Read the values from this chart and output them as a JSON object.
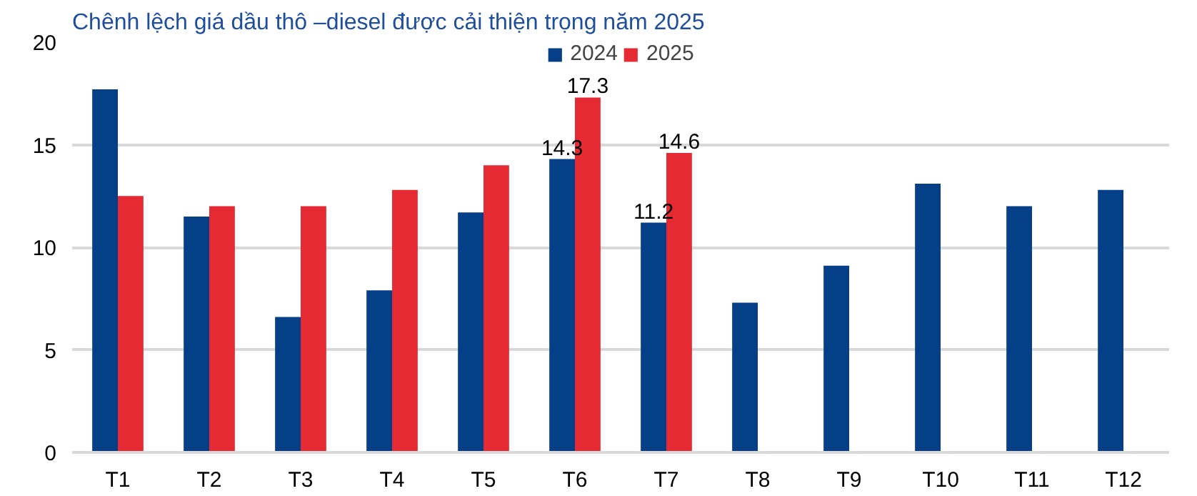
{
  "chart_data": {
    "type": "bar",
    "title": "Chênh lệch giá dầu thô –diesel được cải thiện trọng năm 2025",
    "categories": [
      "T1",
      "T2",
      "T3",
      "T4",
      "T5",
      "T6",
      "T7",
      "T8",
      "T9",
      "T10",
      "T11",
      "T12"
    ],
    "series": [
      {
        "name": "2024",
        "color": "#043f87",
        "values": [
          17.7,
          11.5,
          6.6,
          7.9,
          11.7,
          14.3,
          11.2,
          7.3,
          9.1,
          13.1,
          12.0,
          12.8
        ],
        "value_labels": [
          null,
          null,
          null,
          null,
          null,
          "14.3",
          "11.2",
          null,
          null,
          null,
          null,
          null
        ]
      },
      {
        "name": "2025",
        "color": "#e52a33",
        "values": [
          12.5,
          12.0,
          12.0,
          12.8,
          14.0,
          17.3,
          14.6,
          null,
          null,
          null,
          null,
          null
        ],
        "value_labels": [
          null,
          null,
          null,
          null,
          null,
          "17.3",
          "14.6",
          null,
          null,
          null,
          null,
          null
        ]
      }
    ],
    "ylim": [
      0,
      20
    ],
    "yticks": [
      0,
      5,
      10,
      15,
      20
    ],
    "grid": "y",
    "legend": "top"
  }
}
